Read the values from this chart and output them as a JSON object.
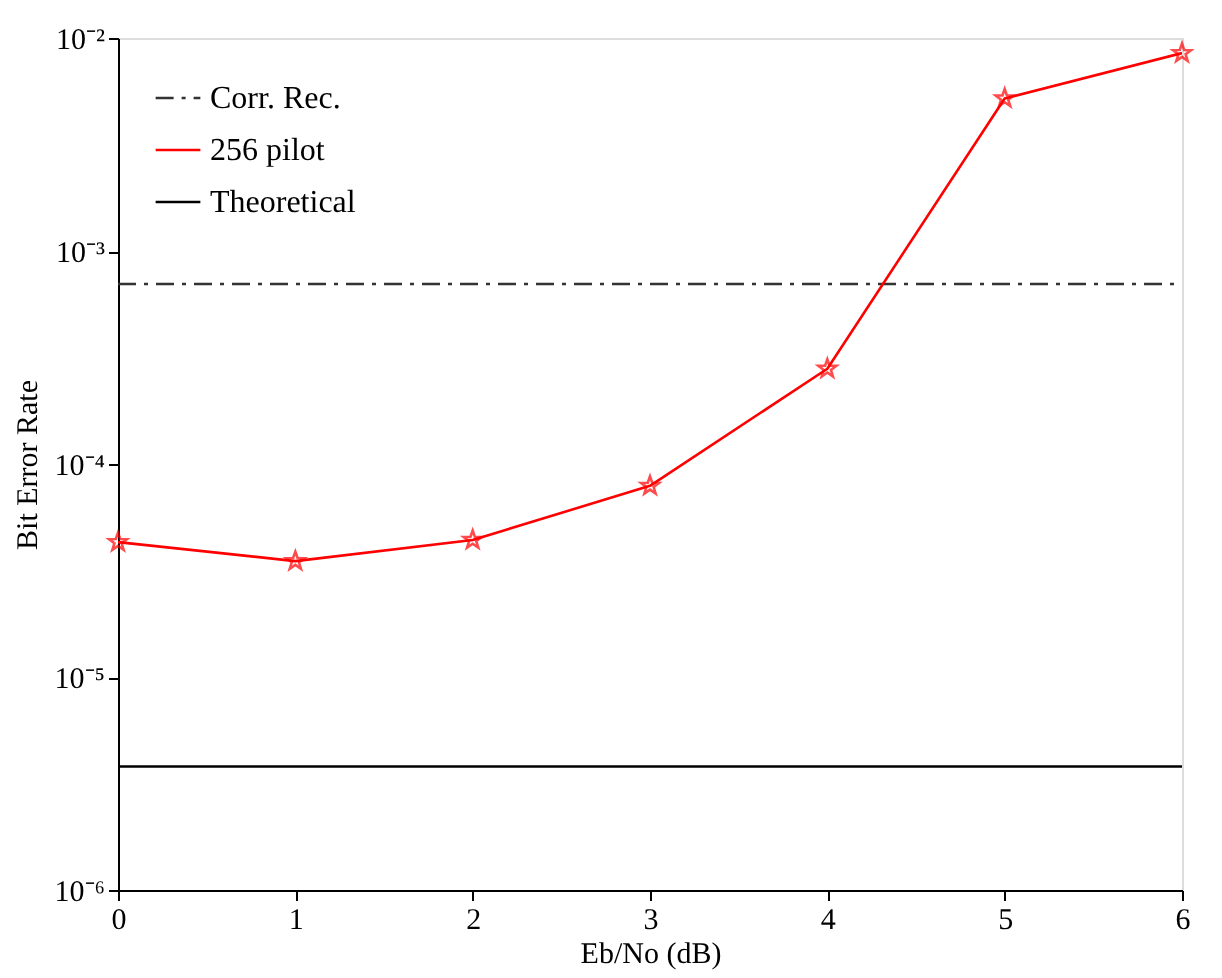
{
  "chart_data": {
    "type": "line",
    "xlabel": "Eb/No (dB)",
    "ylabel": "Bit Error Rate",
    "log": "y",
    "grid": false,
    "legend": "top left",
    "xlim": [
      0,
      6
    ],
    "xticks": [
      0,
      1,
      2,
      3,
      4,
      5,
      6
    ],
    "ylim": [
      1e-06,
      0.01
    ],
    "yticks": [
      {
        "value": 1e-06,
        "label": "10⁻⁶"
      },
      {
        "value": 1e-05,
        "label": "10⁻⁵"
      },
      {
        "value": 0.0001,
        "label": "10⁻⁴"
      },
      {
        "value": 0.001,
        "label": "10⁻³"
      },
      {
        "value": 0.01,
        "label": "10⁻²"
      }
    ],
    "series": [
      {
        "name": "Corr. Rec.",
        "color": "#333333",
        "line_style": "dashdot",
        "marker": "none",
        "x": [
          0,
          6
        ],
        "values": [
          0.0007,
          0.0007
        ]
      },
      {
        "name": "256 pilot",
        "color": "#ff0000",
        "line_style": "solid",
        "marker": "star",
        "x": [
          0,
          1,
          2,
          3,
          4,
          5,
          6
        ],
        "values": [
          4.3e-05,
          3.5e-05,
          4.4e-05,
          7.9e-05,
          0.00028,
          0.0052,
          0.0085
        ]
      },
      {
        "name": "Theoretical",
        "color": "#000000",
        "line_style": "solid",
        "marker": "none",
        "x": [
          0,
          6
        ],
        "values": [
          3.8e-06,
          3.8e-06
        ]
      }
    ]
  }
}
